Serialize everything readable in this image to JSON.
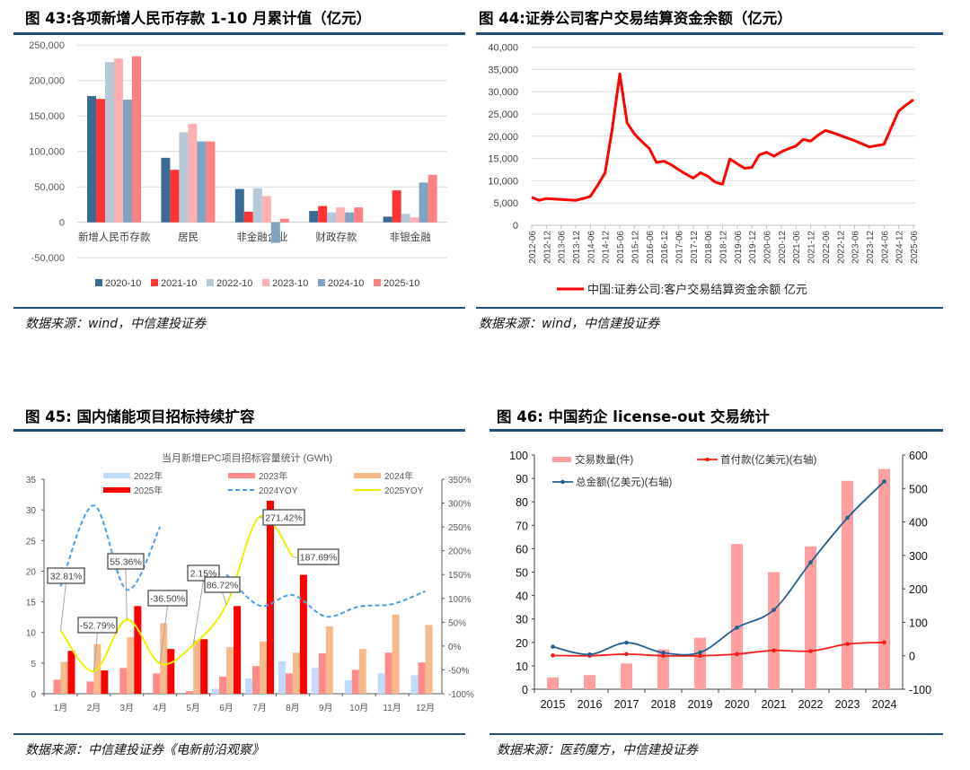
{
  "panels": {
    "fig43": {
      "title": "图 43:各项新增人民币存款 1-10 月累计值（亿元）",
      "source": "数据来源：wind，中信建投证券"
    },
    "fig44": {
      "title": "图 44:证券公司客户交易结算资金余额（亿元）",
      "source": "数据来源：wind，中信建投证券"
    },
    "fig45": {
      "title": "图 45:  国内储能项目招标持续扩容",
      "source": "数据来源：中信建投证券《电新前沿观察》"
    },
    "fig46": {
      "title": "图 46:  中国药企 license-out 交易统计",
      "source": "数据来源：医药魔方，中信建投证券"
    }
  },
  "chart_data": [
    {
      "type": "bar",
      "categories": [
        "新增人民币存款",
        "居民",
        "非金融企业",
        "财政存款",
        "非银金融"
      ],
      "series": [
        {
          "name": "2020-10",
          "color": "#3a6b94",
          "values": [
            178000,
            91000,
            47000,
            16000,
            8000
          ]
        },
        {
          "name": "2021-10",
          "color": "#ff3333",
          "values": [
            174000,
            74000,
            15000,
            23000,
            45000
          ]
        },
        {
          "name": "2022-10",
          "color": "#b4c8d8",
          "values": [
            226000,
            127000,
            48000,
            14000,
            12000
          ]
        },
        {
          "name": "2023-10",
          "color": "#ffb0b0",
          "values": [
            231000,
            139000,
            37000,
            21000,
            7000
          ]
        },
        {
          "name": "2024-10",
          "color": "#7fa3c0",
          "values": [
            173000,
            114000,
            -29000,
            14000,
            56000
          ]
        },
        {
          "name": "2025-10",
          "color": "#ff8080",
          "values": [
            234000,
            114000,
            5000,
            21000,
            67000
          ]
        }
      ],
      "ylim": [
        -50000,
        250000
      ],
      "yticks": [
        "-50,000",
        "0",
        "50,000",
        "100,000",
        "150,000",
        "200,000",
        "250,000"
      ],
      "grid": true,
      "legend": "bottom"
    },
    {
      "type": "line",
      "x": [
        "2012-06",
        "2012-09",
        "2012-12",
        "2013-03",
        "2013-06",
        "2013-09",
        "2013-12",
        "2014-03",
        "2014-06",
        "2014-09",
        "2014-12",
        "2015-03",
        "2015-06",
        "2015-09",
        "2015-12",
        "2016-03",
        "2016-06",
        "2016-09",
        "2016-12",
        "2017-03",
        "2017-06",
        "2017-09",
        "2017-12",
        "2018-03",
        "2018-06",
        "2018-09",
        "2018-12",
        "2019-03",
        "2019-06",
        "2019-09",
        "2019-12",
        "2020-03",
        "2020-06",
        "2020-09",
        "2020-12",
        "2021-03",
        "2021-06",
        "2021-09",
        "2021-12",
        "2022-03",
        "2022-06",
        "2022-09",
        "2022-12",
        "2023-03",
        "2023-06",
        "2023-09",
        "2023-12",
        "2024-03",
        "2024-06",
        "2024-09",
        "2024-12",
        "2025-03",
        "2025-06"
      ],
      "series": [
        {
          "name": "中国:证券公司:客户交易结算资金余额 亿元",
          "color": "#ff0000",
          "values": [
            6300,
            5600,
            6000,
            5900,
            5800,
            5700,
            5600,
            6000,
            6500,
            9000,
            11800,
            22000,
            34000,
            23000,
            20500,
            18800,
            17300,
            14100,
            14400,
            13600,
            12500,
            11500,
            10600,
            11800,
            11000,
            9700,
            9200,
            14900,
            13800,
            12800,
            13000,
            15800,
            16400,
            15500,
            16500,
            17200,
            17800,
            19300,
            18900,
            20200,
            21300,
            20800,
            20200,
            19600,
            19000,
            18300,
            17600,
            17900,
            18200,
            22000,
            25700,
            27000,
            28200
          ]
        }
      ],
      "xticks": [
        "2012-06",
        "2012-12",
        "2013-06",
        "2013-12",
        "2014-06",
        "2014-12",
        "2015-06",
        "2015-12",
        "2016-06",
        "2016-12",
        "2017-06",
        "2017-12",
        "2018-06",
        "2018-12",
        "2019-06",
        "2019-12",
        "2020-06",
        "2020-12",
        "2021-06",
        "2021-12",
        "2022-06",
        "2022-12",
        "2023-06",
        "2023-12",
        "2024-06",
        "2024-12",
        "2025-06"
      ],
      "ylim": [
        0,
        40000
      ],
      "yticks": [
        "0",
        "5,000",
        "10,000",
        "15,000",
        "20,000",
        "25,000",
        "30,000",
        "35,000",
        "40,000"
      ],
      "grid": true,
      "legend": "bottom"
    },
    {
      "type": "bar",
      "title": "当月新增EPC项目招标容量统计 (GWh)",
      "categories": [
        "1月",
        "2月",
        "3月",
        "4月",
        "5月",
        "6月",
        "7月",
        "8月",
        "9月",
        "10月",
        "11月",
        "12月"
      ],
      "series": [
        {
          "name": "2022年",
          "color": "#bfdcff",
          "values": [
            0,
            0,
            0,
            0,
            0,
            0.8,
            2.5,
            5.3,
            4.2,
            2.2,
            3.3,
            3.0
          ]
        },
        {
          "name": "2023年",
          "color": "#ff8a8a",
          "values": [
            2.3,
            2.0,
            4.2,
            3.3,
            0.4,
            2.8,
            4.5,
            3.3,
            6.6,
            3.9,
            6.7,
            5.1
          ]
        },
        {
          "name": "2024年",
          "color": "#f5b98a",
          "values": [
            5.2,
            8.1,
            9.2,
            11.5,
            8.7,
            7.6,
            8.5,
            6.7,
            11.0,
            7.3,
            12.9,
            11.2
          ]
        },
        {
          "name": "2025年",
          "color": "#ff0000",
          "values": [
            7.0,
            3.8,
            14.3,
            7.3,
            8.9,
            14.3,
            31.5,
            19.4,
            null,
            null,
            null,
            null
          ]
        }
      ],
      "line_series": [
        {
          "name": "2024YOY",
          "color": "#4a9ee8",
          "dashed": true,
          "axis": "right",
          "values": [
            125,
            295,
            118,
            250,
            null,
            150,
            85,
            107,
            62,
            83,
            88,
            115
          ]
        },
        {
          "name": "2025YOY",
          "color": "#f2ee00",
          "axis": "right",
          "values": [
            32.81,
            -52.79,
            55.36,
            -36.5,
            2.15,
            86.72,
            271.42,
            187.69,
            null,
            null,
            null,
            null
          ]
        }
      ],
      "data_labels": [
        "32.81%",
        "-52.79%",
        "55.36%",
        "-36.50%",
        "2.15%",
        "86.72%",
        "271.42%",
        "187.69%"
      ],
      "ylim": [
        0,
        35
      ],
      "yticks": [
        "0",
        "5",
        "10",
        "15",
        "20",
        "25",
        "30",
        "35"
      ],
      "y2lim": [
        -100,
        350
      ],
      "y2ticks": [
        "-100%",
        "-50%",
        "0%",
        "50%",
        "100%",
        "150%",
        "200%",
        "250%",
        "300%",
        "350%"
      ],
      "legend": "top"
    },
    {
      "type": "bar",
      "categories": [
        "2015",
        "2016",
        "2017",
        "2018",
        "2019",
        "2020",
        "2021",
        "2022",
        "2023",
        "2024"
      ],
      "series": [
        {
          "name": "交易数量(件)",
          "color": "#ff9f9f",
          "values": [
            5,
            6,
            11,
            17,
            22,
            62,
            50,
            61,
            89,
            94
          ]
        }
      ],
      "line_series": [
        {
          "name": "首付款(亿美元)(右轴)",
          "color": "#ff1a1a",
          "axis": "right",
          "values": [
            1,
            0,
            5,
            0,
            0,
            5,
            16,
            14,
            35,
            40
          ]
        },
        {
          "name": "总金额(亿美元)(右轴)",
          "color": "#1f5f8f",
          "axis": "right",
          "values": [
            27,
            4,
            39,
            9,
            10,
            84,
            137,
            279,
            412,
            521
          ]
        }
      ],
      "ylim": [
        0,
        100
      ],
      "yticks": [
        "0",
        "10",
        "20",
        "30",
        "40",
        "50",
        "60",
        "70",
        "80",
        "90",
        "100"
      ],
      "y2lim": [
        -100,
        600
      ],
      "y2ticks": [
        "-100",
        "0",
        "100",
        "200",
        "300",
        "400",
        "500",
        "600"
      ],
      "legend": "top"
    }
  ]
}
